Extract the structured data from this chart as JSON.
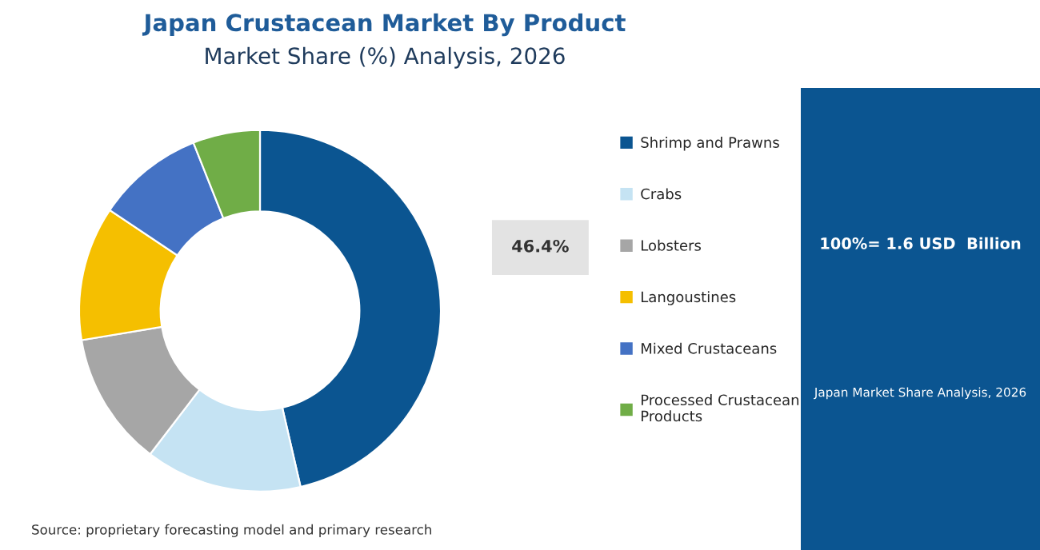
{
  "chart_data": {
    "type": "donut",
    "title": "Japan Crustacean Market By Product",
    "subtitle": "Market Share (%) Analysis, 2026",
    "categories": [
      "Shrimp and Prawns",
      "Crabs",
      "Lobsters",
      "Langoustines",
      "Mixed Crustaceans",
      "Processed Crustacean Products"
    ],
    "values": [
      46.4,
      14,
      12,
      12,
      9.6,
      6
    ],
    "colors": [
      "#0b5591",
      "#c5e3f3",
      "#a6a6a6",
      "#f5bf00",
      "#4472c4",
      "#70ad47"
    ],
    "value_labels": [
      "46.4%",
      null,
      null,
      null,
      null,
      null
    ],
    "legend": "right",
    "annotations": [
      "100%= 1.6 USD  Billion",
      "Japan Market Share Analysis, 2026",
      "Source: proprietary forecasting model and primary research"
    ]
  }
}
